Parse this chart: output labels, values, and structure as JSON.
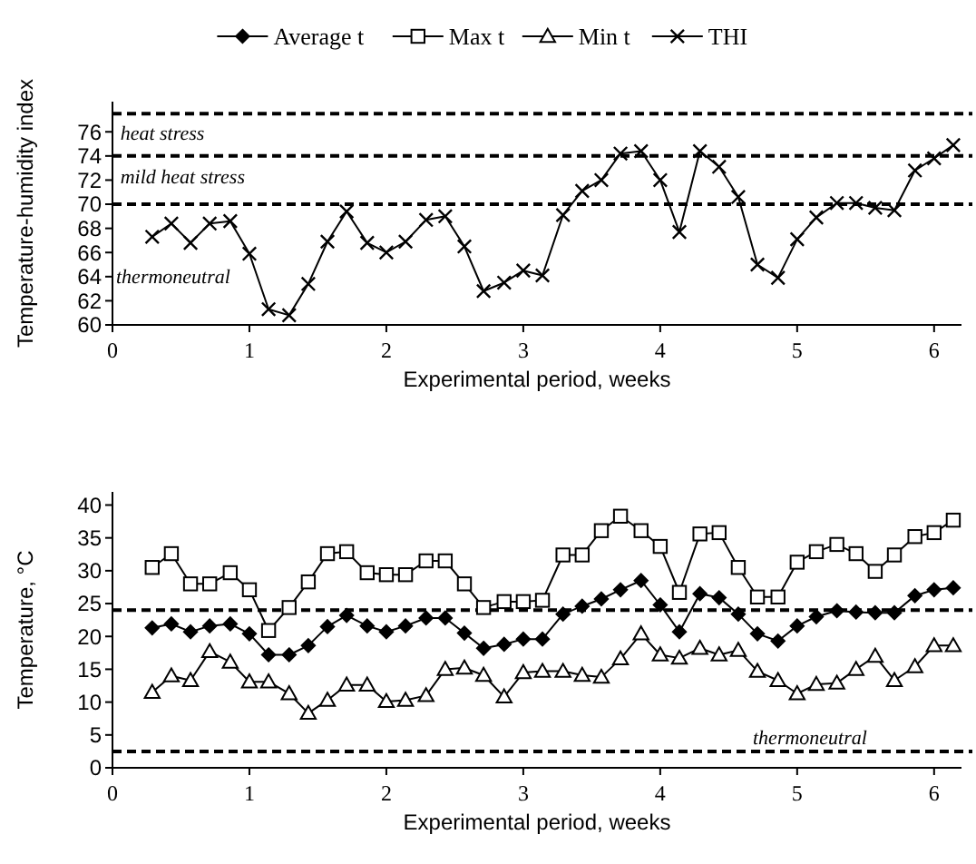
{
  "chart_data": [
    {
      "type": "line",
      "ylabel": "Temperature-humidity index",
      "xlabel": "Experimental period, weeks",
      "x": [
        0.29,
        0.43,
        0.57,
        0.71,
        0.86,
        1,
        1.14,
        1.29,
        1.43,
        1.57,
        1.71,
        1.86,
        2,
        2.14,
        2.29,
        2.43,
        2.57,
        2.71,
        2.86,
        3,
        3.14,
        3.29,
        3.43,
        3.57,
        3.71,
        3.86,
        4,
        4.14,
        4.29,
        4.43,
        4.57,
        4.71,
        4.86,
        5,
        5.14,
        5.29,
        5.43,
        5.57,
        5.71,
        5.86,
        6,
        6.14
      ],
      "series": [
        {
          "name": "THI",
          "color": "#000000",
          "marker": "cross",
          "values": [
            67.3,
            68.4,
            66.8,
            68.4,
            68.6,
            65.9,
            61.3,
            60.8,
            63.4,
            66.9,
            69.4,
            66.8,
            66.0,
            66.9,
            68.7,
            69.0,
            66.5,
            62.8,
            63.5,
            64.5,
            64.1,
            69.1,
            71.1,
            72.0,
            74.2,
            74.4,
            72.0,
            67.7,
            74.4,
            73.1,
            70.6,
            65.0,
            63.9,
            67.1,
            68.9,
            70.1,
            70.1,
            69.7,
            69.5,
            72.8,
            73.8,
            74.9
          ]
        }
      ],
      "xlim": [
        0,
        6.2
      ],
      "xticks": [
        0,
        1,
        2,
        3,
        4,
        5,
        6
      ],
      "ylim": [
        60,
        78.5
      ],
      "yticks": [
        60,
        62,
        64,
        66,
        68,
        70,
        72,
        74,
        76
      ],
      "ref_lines": [
        {
          "axis": "y",
          "value": 70,
          "line_style": "dashed"
        },
        {
          "axis": "y",
          "value": 74,
          "line_style": "dashed"
        },
        {
          "axis": "y",
          "value": 77.5,
          "line_style": "dashed"
        }
      ],
      "annotations": [
        "heat stress",
        "mild heat stress",
        "thermoneutral"
      ],
      "legend": "top",
      "grid": false,
      "line_style": "solid"
    },
    {
      "type": "line",
      "ylabel": "Temperature, °C",
      "xlabel": "Experimental period, weeks",
      "x": [
        0.29,
        0.43,
        0.57,
        0.71,
        0.86,
        1,
        1.14,
        1.29,
        1.43,
        1.57,
        1.71,
        1.86,
        2,
        2.14,
        2.29,
        2.43,
        2.57,
        2.71,
        2.86,
        3,
        3.14,
        3.29,
        3.43,
        3.57,
        3.71,
        3.86,
        4,
        4.14,
        4.29,
        4.43,
        4.57,
        4.71,
        4.86,
        5,
        5.14,
        5.29,
        5.43,
        5.57,
        5.71,
        5.86,
        6,
        6.14
      ],
      "series": [
        {
          "name": "Average t",
          "color": "#000000",
          "marker": "diamond",
          "values": [
            21.3,
            21.9,
            20.7,
            21.6,
            21.9,
            20.4,
            17.2,
            17.2,
            18.6,
            21.5,
            23.2,
            21.6,
            20.7,
            21.6,
            22.8,
            22.8,
            20.5,
            18.2,
            18.8,
            19.6,
            19.6,
            23.4,
            24.6,
            25.7,
            27.1,
            28.5,
            24.8,
            20.7,
            26.5,
            25.9,
            23.4,
            20.4,
            19.3,
            21.6,
            23.0,
            23.9,
            23.7,
            23.6,
            23.6,
            26.2,
            27.1,
            27.4
          ]
        },
        {
          "name": "Max t",
          "color": "#000000",
          "marker": "square",
          "values": [
            30.5,
            32.6,
            28.0,
            28.0,
            29.7,
            27.1,
            20.9,
            24.4,
            28.3,
            32.6,
            32.9,
            29.7,
            29.4,
            29.4,
            31.5,
            31.5,
            28.0,
            24.4,
            25.3,
            25.3,
            25.5,
            32.4,
            32.4,
            36.1,
            38.3,
            36.1,
            33.7,
            26.7,
            35.6,
            35.8,
            30.5,
            26.0,
            26.0,
            31.3,
            32.9,
            34.0,
            32.6,
            29.9,
            32.4,
            35.2,
            35.8,
            37.7
          ]
        },
        {
          "name": "Min t",
          "color": "#000000",
          "marker": "triangle",
          "values": [
            11.5,
            14.0,
            13.3,
            17.7,
            16.1,
            13.1,
            13.1,
            11.3,
            8.3,
            10.3,
            12.6,
            12.6,
            10.1,
            10.3,
            11.0,
            15.0,
            15.2,
            14.1,
            10.8,
            14.5,
            14.7,
            14.7,
            14.1,
            13.8,
            16.6,
            20.4,
            17.2,
            16.7,
            18.2,
            17.2,
            17.9,
            14.7,
            13.3,
            11.3,
            12.7,
            12.9,
            15.0,
            17.0,
            13.3,
            15.4,
            18.6,
            18.6
          ]
        }
      ],
      "xlim": [
        0,
        6.2
      ],
      "xticks": [
        0,
        1,
        2,
        3,
        4,
        5,
        6
      ],
      "ylim": [
        0,
        42
      ],
      "yticks": [
        0,
        5,
        10,
        15,
        20,
        25,
        30,
        35,
        40
      ],
      "ref_lines": [
        {
          "axis": "y",
          "value": 24,
          "line_style": "dashed"
        },
        {
          "axis": "y",
          "value": 2.5,
          "line_style": "dashed"
        }
      ],
      "annotations": [
        "thermoneutral"
      ],
      "legend": "top",
      "grid": false,
      "line_style": "solid"
    }
  ]
}
